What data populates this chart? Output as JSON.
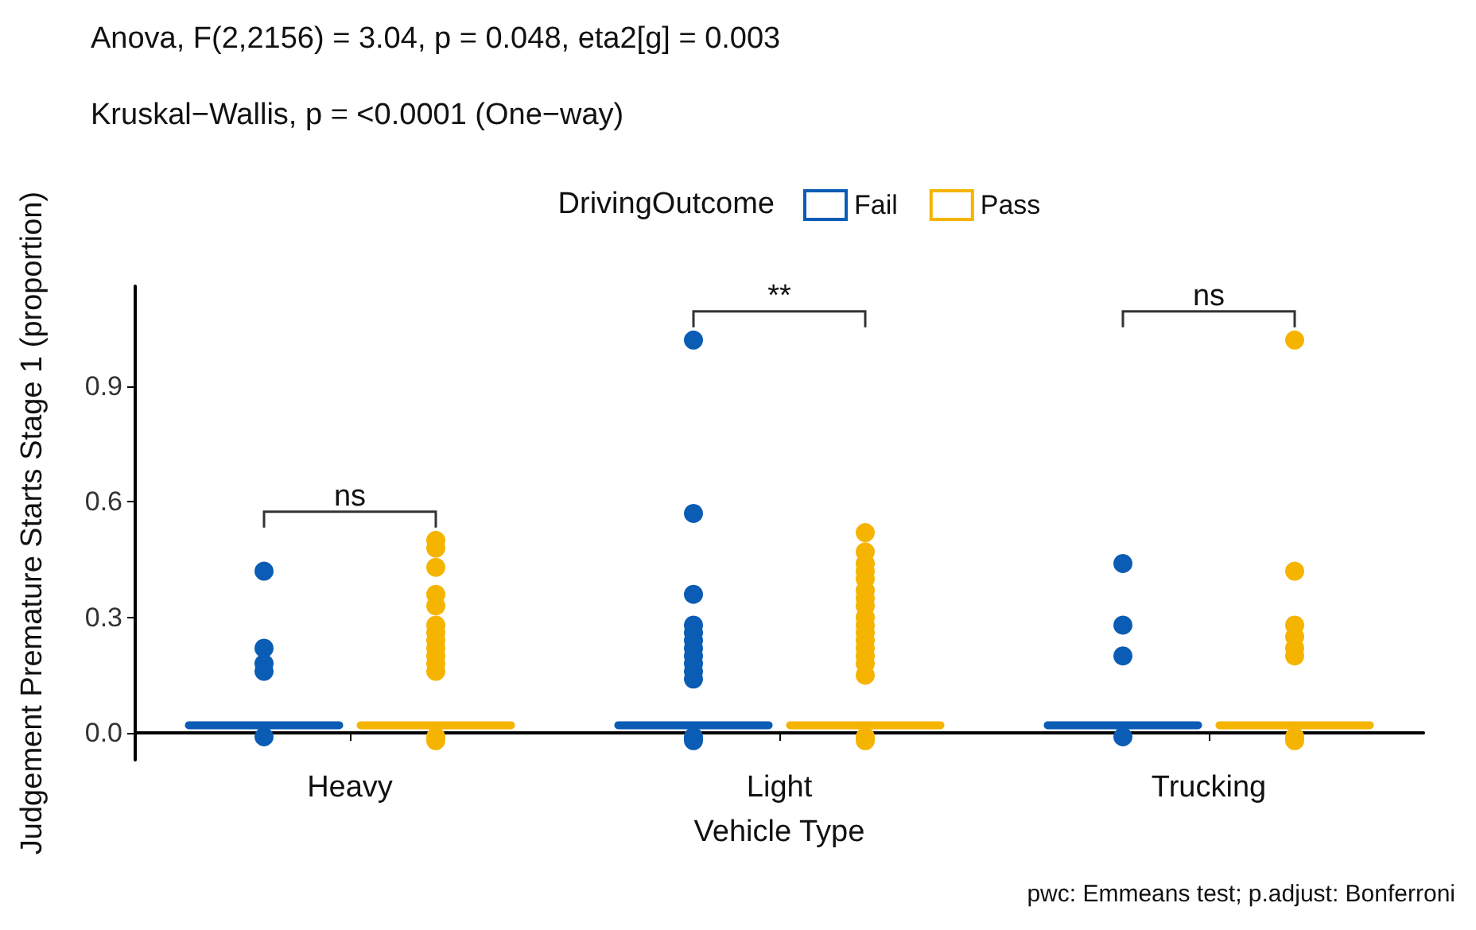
{
  "chart_data": {
    "type": "box",
    "title": "Anova, F(2,2156) = 3.04, p = 0.048, eta2[g] = 0.003",
    "subtitle": "Kruskal−Wallis, p = <0.0001 (One−way)",
    "xlabel": "Vehicle Type",
    "ylabel": "Judgement Premature Starts Stage 1 (proportion)",
    "legend_title": "DrivingOutcome",
    "legend": "top",
    "grid": false,
    "categories": [
      "Heavy",
      "Light",
      "Trucking"
    ],
    "ylim": [
      -0.07,
      1.16
    ],
    "yticks": [
      {
        "value": 0,
        "label": "0.0"
      },
      {
        "value": 0.3,
        "label": "0.3"
      },
      {
        "value": 0.6,
        "label": "0.6"
      },
      {
        "value": 0.9,
        "label": "0.9"
      }
    ],
    "series": [
      {
        "name": "Fail",
        "color": "#0a5cb4",
        "boxes": [
          {
            "low": 0.02,
            "q1": 0.02,
            "median": 0.02,
            "q3": 0.02,
            "high": 0.02,
            "outliers": [
              0.42,
              0.22,
              0.18,
              0.16,
              -0.01
            ]
          },
          {
            "low": 0.02,
            "q1": 0.02,
            "median": 0.02,
            "q3": 0.02,
            "high": 0.02,
            "outliers": [
              1.02,
              0.57,
              0.36,
              0.28,
              0.26,
              0.24,
              0.22,
              0.2,
              0.18,
              0.16,
              0.14,
              -0.01,
              -0.02
            ]
          },
          {
            "low": 0.02,
            "q1": 0.02,
            "median": 0.02,
            "q3": 0.02,
            "high": 0.02,
            "outliers": [
              0.44,
              0.28,
              0.2,
              -0.01
            ]
          }
        ]
      },
      {
        "name": "Pass",
        "color": "#f5b400",
        "boxes": [
          {
            "low": 0.02,
            "q1": 0.02,
            "median": 0.02,
            "q3": 0.02,
            "high": 0.02,
            "outliers": [
              0.5,
              0.48,
              0.43,
              0.36,
              0.33,
              0.28,
              0.26,
              0.24,
              0.22,
              0.2,
              0.18,
              0.16,
              -0.01,
              -0.02
            ]
          },
          {
            "low": 0.02,
            "q1": 0.02,
            "median": 0.02,
            "q3": 0.02,
            "high": 0.02,
            "outliers": [
              0.52,
              0.47,
              0.44,
              0.42,
              0.4,
              0.37,
              0.35,
              0.33,
              0.3,
              0.28,
              0.26,
              0.24,
              0.22,
              0.2,
              0.18,
              0.15,
              -0.01,
              -0.02
            ]
          },
          {
            "low": 0.02,
            "q1": 0.02,
            "median": 0.02,
            "q3": 0.02,
            "high": 0.02,
            "outliers": [
              1.02,
              0.42,
              0.28,
              0.25,
              0.22,
              0.2,
              -0.01,
              -0.02
            ]
          }
        ]
      }
    ],
    "annotations": [
      "ns",
      "**",
      "ns",
      "pwc: Emmeans test; p.adjust: Bonferroni"
    ]
  }
}
